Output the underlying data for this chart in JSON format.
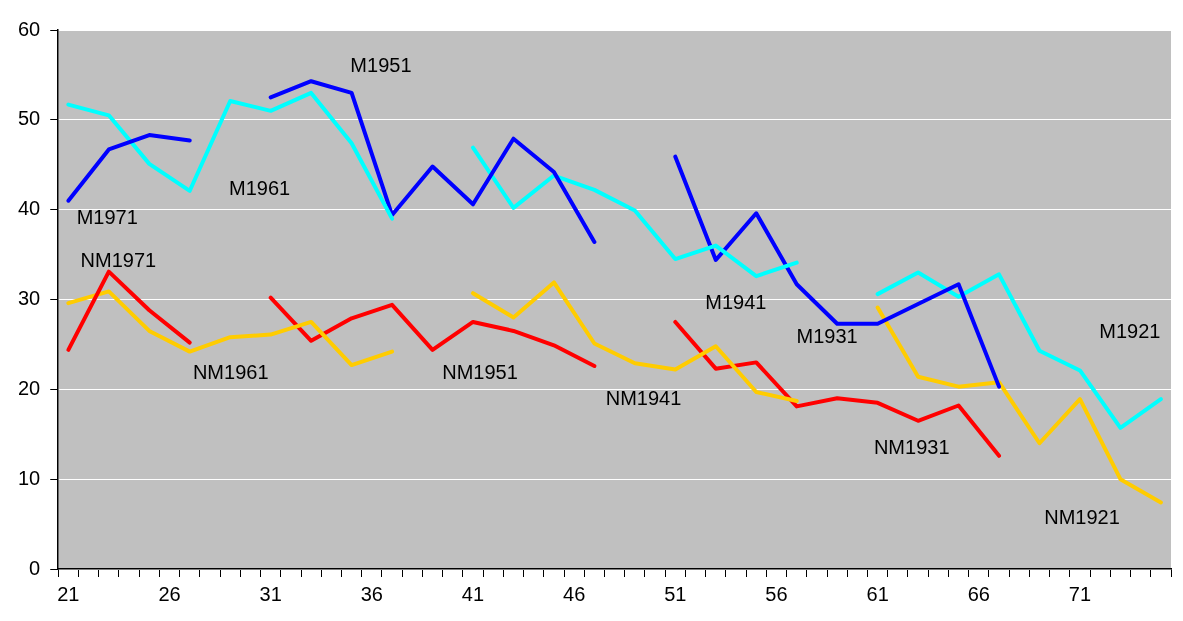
{
  "chart_data": {
    "type": "line",
    "categories": [
      "21",
      null,
      null,
      null,
      null,
      "26",
      null,
      null,
      null,
      null,
      "31",
      null,
      null,
      null,
      null,
      "36",
      null,
      null,
      null,
      null,
      "41",
      null,
      null,
      null,
      null,
      "46",
      null,
      null,
      null,
      null,
      "51",
      null,
      null,
      null,
      null,
      "56",
      null,
      null,
      null,
      null,
      "61",
      null,
      null,
      null,
      null,
      "66",
      null,
      null,
      null,
      null,
      "71",
      null,
      null,
      null,
      null
    ],
    "ylim": [
      0,
      60
    ],
    "yticks": [
      0,
      10,
      20,
      30,
      40,
      50,
      60
    ],
    "grid": "y",
    "legend": false,
    "marker": "none",
    "line_style": "solid",
    "series": [
      {
        "name": "M1971",
        "color": "#0000ff",
        "values": [
          41.0,
          null,
          46.7,
          null,
          48.3,
          null,
          47.7,
          null,
          null,
          null,
          null,
          null,
          null,
          null,
          null,
          null,
          null,
          null,
          null,
          null,
          null,
          null,
          null,
          null,
          null,
          null,
          null,
          null,
          null,
          null,
          null,
          null,
          null,
          null,
          null,
          null,
          null,
          null,
          null,
          null,
          null,
          null,
          null,
          null,
          null,
          null,
          null,
          null,
          null,
          null,
          null,
          null,
          null,
          null,
          null
        ]
      },
      {
        "name": "M1961",
        "color": "#00ffff",
        "values": [
          51.7,
          null,
          50.5,
          null,
          45.1,
          null,
          42.1,
          null,
          52.1,
          null,
          51.0,
          null,
          53.0,
          null,
          47.4,
          null,
          39.0,
          null,
          null,
          null,
          null,
          null,
          null,
          null,
          null,
          null,
          null,
          null,
          null,
          null,
          null,
          null,
          null,
          null,
          null,
          null,
          null,
          null,
          null,
          null,
          null,
          null,
          null,
          null,
          null,
          null,
          null,
          null,
          null,
          null,
          null,
          null,
          null,
          null,
          null
        ]
      },
      {
        "name": "M1951",
        "color": "#0000ff",
        "values": [
          null,
          null,
          null,
          null,
          null,
          null,
          null,
          null,
          null,
          null,
          52.5,
          null,
          54.3,
          null,
          53.0,
          null,
          39.4,
          null,
          44.8,
          null,
          40.6,
          null,
          47.9,
          null,
          44.2,
          null,
          36.4,
          null,
          null,
          null,
          null,
          null,
          null,
          null,
          null,
          null,
          null,
          null,
          null,
          null,
          null,
          null,
          null,
          null,
          null,
          null,
          null,
          null,
          null,
          null,
          null,
          null,
          null,
          null,
          null
        ]
      },
      {
        "name": "M1941",
        "color": "#00ffff",
        "values": [
          null,
          null,
          null,
          null,
          null,
          null,
          null,
          null,
          null,
          null,
          null,
          null,
          null,
          null,
          null,
          null,
          null,
          null,
          null,
          null,
          46.9,
          null,
          40.2,
          null,
          43.8,
          null,
          42.2,
          null,
          39.9,
          null,
          34.5,
          null,
          36.0,
          null,
          32.6,
          null,
          34.1,
          null,
          null,
          null,
          null,
          null,
          null,
          null,
          null,
          null,
          null,
          null,
          null,
          null,
          null,
          null,
          null,
          null,
          null
        ]
      },
      {
        "name": "M1931",
        "color": "#0000ff",
        "values": [
          null,
          null,
          null,
          null,
          null,
          null,
          null,
          null,
          null,
          null,
          null,
          null,
          null,
          null,
          null,
          null,
          null,
          null,
          null,
          null,
          null,
          null,
          null,
          null,
          null,
          null,
          null,
          null,
          null,
          null,
          45.9,
          null,
          34.4,
          null,
          39.6,
          null,
          31.7,
          null,
          27.3,
          null,
          27.3,
          null,
          29.5,
          null,
          31.7,
          null,
          20.3,
          null,
          null,
          null,
          null,
          null,
          null,
          null,
          null
        ]
      },
      {
        "name": "M1921",
        "color": "#00ffff",
        "values": [
          null,
          null,
          null,
          null,
          null,
          null,
          null,
          null,
          null,
          null,
          null,
          null,
          null,
          null,
          null,
          null,
          null,
          null,
          null,
          null,
          null,
          null,
          null,
          null,
          null,
          null,
          null,
          null,
          null,
          null,
          null,
          null,
          null,
          null,
          null,
          null,
          null,
          null,
          null,
          null,
          30.6,
          null,
          33.0,
          null,
          30.3,
          null,
          32.8,
          null,
          24.3,
          null,
          22.1,
          null,
          15.7,
          null,
          18.9
        ]
      },
      {
        "name": "NM1971",
        "color": "#ff0000",
        "values": [
          24.4,
          null,
          33.1,
          null,
          28.8,
          null,
          25.2,
          null,
          null,
          null,
          null,
          null,
          null,
          null,
          null,
          null,
          null,
          null,
          null,
          null,
          null,
          null,
          null,
          null,
          null,
          null,
          null,
          null,
          null,
          null,
          null,
          null,
          null,
          null,
          null,
          null,
          null,
          null,
          null,
          null,
          null,
          null,
          null,
          null,
          null,
          null,
          null,
          null,
          null,
          null,
          null,
          null,
          null,
          null,
          null
        ]
      },
      {
        "name": "NM1961",
        "color": "#ffcc00",
        "values": [
          29.6,
          null,
          30.9,
          null,
          26.5,
          null,
          24.2,
          null,
          25.8,
          null,
          26.1,
          null,
          27.5,
          null,
          22.7,
          null,
          24.2,
          null,
          null,
          null,
          null,
          null,
          null,
          null,
          null,
          null,
          null,
          null,
          null,
          null,
          null,
          null,
          null,
          null,
          null,
          null,
          null,
          null,
          null,
          null,
          null,
          null,
          null,
          null,
          null,
          null,
          null,
          null,
          null,
          null,
          null,
          null,
          null,
          null,
          null
        ]
      },
      {
        "name": "NM1951",
        "color": "#ff0000",
        "values": [
          null,
          null,
          null,
          null,
          null,
          null,
          null,
          null,
          null,
          null,
          30.2,
          null,
          25.4,
          null,
          27.9,
          null,
          29.4,
          null,
          24.4,
          null,
          27.5,
          null,
          26.5,
          null,
          24.9,
          null,
          22.6,
          null,
          null,
          null,
          null,
          null,
          null,
          null,
          null,
          null,
          null,
          null,
          null,
          null,
          null,
          null,
          null,
          null,
          null,
          null,
          null,
          null,
          null,
          null,
          null,
          null,
          null,
          null,
          null
        ]
      },
      {
        "name": "NM1941",
        "color": "#ffcc00",
        "values": [
          null,
          null,
          null,
          null,
          null,
          null,
          null,
          null,
          null,
          null,
          null,
          null,
          null,
          null,
          null,
          null,
          null,
          null,
          null,
          null,
          30.7,
          null,
          28.0,
          null,
          31.9,
          null,
          25.1,
          null,
          22.9,
          null,
          22.2,
          null,
          24.8,
          null,
          19.7,
          null,
          18.7,
          null,
          null,
          null,
          null,
          null,
          null,
          null,
          null,
          null,
          null,
          null,
          null,
          null,
          null,
          null,
          null,
          null,
          null
        ]
      },
      {
        "name": "NM1931",
        "color": "#ff0000",
        "values": [
          null,
          null,
          null,
          null,
          null,
          null,
          null,
          null,
          null,
          null,
          null,
          null,
          null,
          null,
          null,
          null,
          null,
          null,
          null,
          null,
          null,
          null,
          null,
          null,
          null,
          null,
          null,
          null,
          null,
          null,
          27.5,
          null,
          22.3,
          null,
          23.0,
          null,
          18.1,
          null,
          19.0,
          null,
          18.5,
          null,
          16.5,
          null,
          18.2,
          null,
          12.6,
          null,
          null,
          null,
          null,
          null,
          null,
          null,
          null
        ]
      },
      {
        "name": "NM1921",
        "color": "#ffcc00",
        "values": [
          null,
          null,
          null,
          null,
          null,
          null,
          null,
          null,
          null,
          null,
          null,
          null,
          null,
          null,
          null,
          null,
          null,
          null,
          null,
          null,
          null,
          null,
          null,
          null,
          null,
          null,
          null,
          null,
          null,
          null,
          null,
          null,
          null,
          null,
          null,
          null,
          null,
          null,
          null,
          null,
          29.1,
          null,
          21.4,
          null,
          20.3,
          null,
          20.8,
          null,
          14.0,
          null,
          18.9,
          null,
          10.0,
          null,
          7.4
        ]
      }
    ]
  }
}
